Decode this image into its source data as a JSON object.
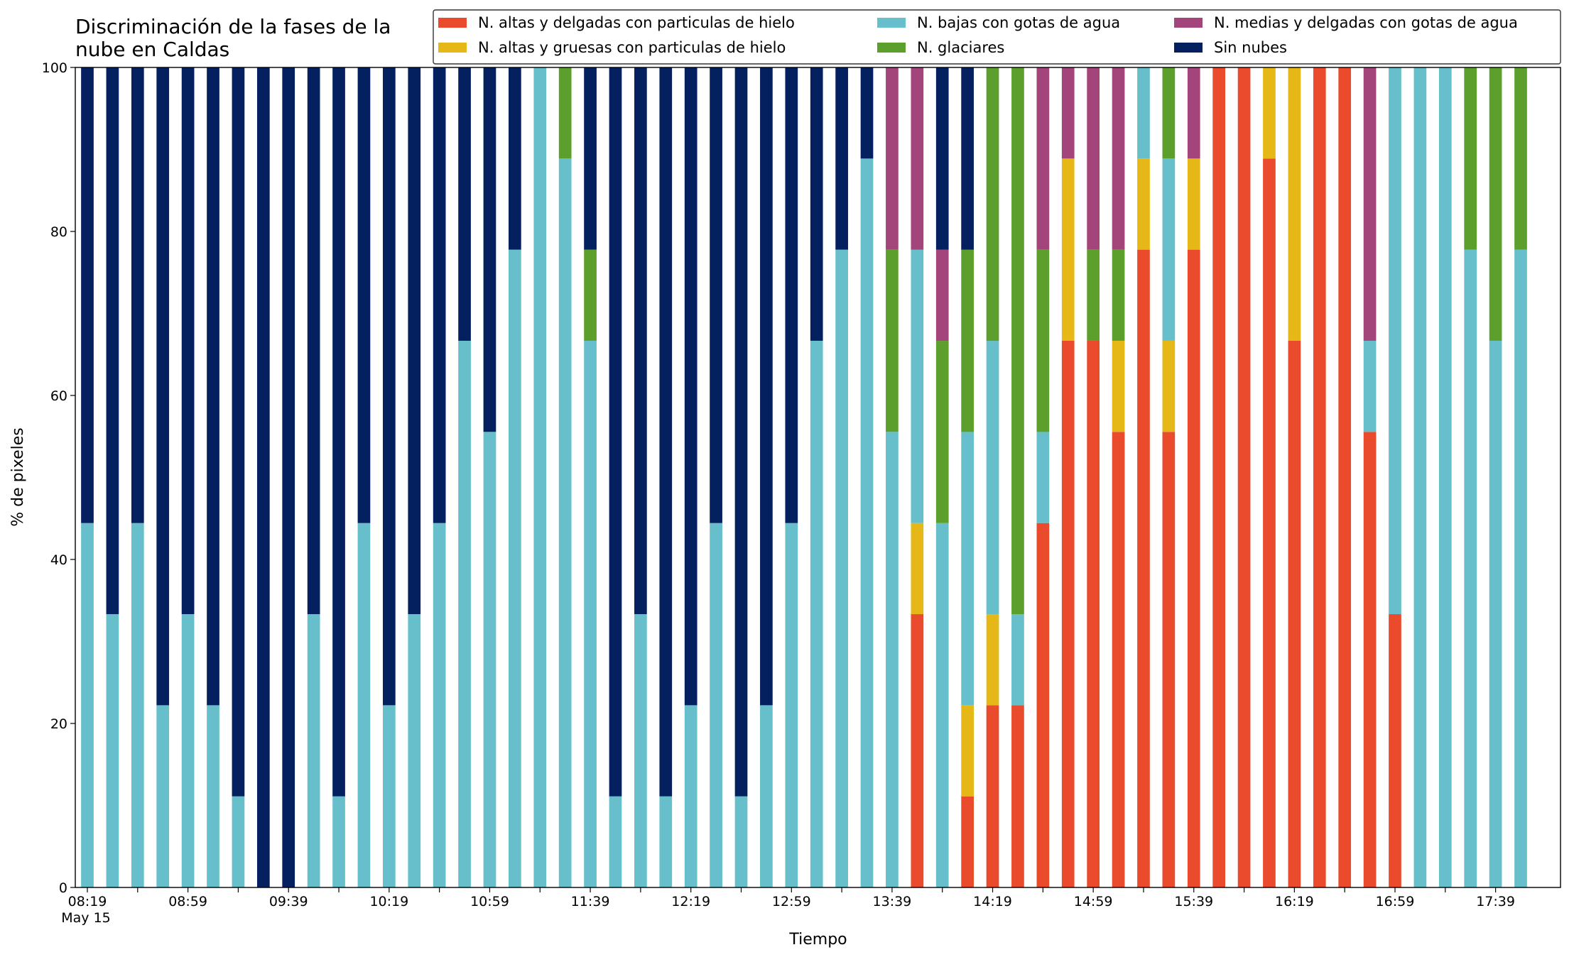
{
  "chart_data": {
    "type": "stacked_bar",
    "title": "Discriminación de la fases de la nube en Caldas",
    "xlabel": "Tiempo",
    "ylabel": "% de pixeles",
    "x_date": "May 15",
    "categories": [
      "08:19",
      null,
      null,
      null,
      "08:59",
      null,
      null,
      null,
      "09:39",
      null,
      null,
      null,
      "10:19",
      null,
      null,
      null,
      "10:59",
      null,
      null,
      null,
      "11:39",
      null,
      null,
      null,
      "12:19",
      null,
      null,
      null,
      "12:59",
      null,
      null,
      null,
      "13:39",
      null,
      null,
      null,
      "14:19",
      null,
      null,
      null,
      "14:59",
      null,
      null,
      null,
      "15:39",
      null,
      null,
      null,
      "16:19",
      null,
      null,
      null,
      "16:59",
      null,
      null,
      null,
      "17:39",
      null
    ],
    "ylim": [
      0,
      100
    ],
    "yticks": [
      0,
      20,
      40,
      60,
      80,
      100
    ],
    "legend_loc": "upper right",
    "legend_columns": 3,
    "series": [
      {
        "name": "N. altas y delgadas con particulas de hielo",
        "color": "#e94b2c",
        "values": [
          0,
          0,
          0,
          0,
          0,
          0,
          0,
          0,
          0,
          0,
          0,
          0,
          0,
          0,
          0,
          0,
          0,
          0,
          0,
          0,
          0,
          0,
          0,
          0,
          0,
          0,
          0,
          0,
          0,
          0,
          0,
          0,
          0,
          33.33,
          0,
          11.11,
          22.22,
          22.22,
          44.44,
          66.67,
          66.67,
          55.56,
          77.78,
          55.56,
          77.78,
          100,
          100,
          88.89,
          66.67,
          100,
          100,
          55.56,
          33.33,
          0,
          0,
          0,
          0,
          0
        ]
      },
      {
        "name": "N. altas y gruesas con particulas de hielo",
        "color": "#e6b817",
        "values": [
          0,
          0,
          0,
          0,
          0,
          0,
          0,
          0,
          0,
          0,
          0,
          0,
          0,
          0,
          0,
          0,
          0,
          0,
          0,
          0,
          0,
          0,
          0,
          0,
          0,
          0,
          0,
          0,
          0,
          0,
          0,
          0,
          0,
          11.11,
          0,
          11.11,
          11.11,
          0,
          0,
          22.22,
          0,
          11.11,
          11.11,
          11.11,
          11.11,
          0,
          0,
          11.11,
          33.33,
          0,
          0,
          0,
          0,
          0,
          0,
          0,
          0,
          0
        ]
      },
      {
        "name": "N. bajas con gotas de agua",
        "color": "#66bfca",
        "values": [
          44.44,
          33.33,
          44.44,
          22.22,
          33.33,
          22.22,
          11.11,
          0,
          0,
          33.33,
          11.11,
          44.44,
          22.22,
          33.33,
          44.44,
          66.67,
          55.56,
          77.78,
          100,
          88.89,
          66.67,
          11.11,
          33.33,
          11.11,
          22.22,
          44.44,
          11.11,
          22.22,
          44.44,
          66.67,
          77.78,
          88.89,
          55.56,
          33.33,
          44.44,
          33.33,
          33.33,
          11.11,
          11.11,
          0,
          0,
          0,
          11.11,
          22.22,
          0,
          0,
          0,
          0,
          0,
          0,
          0,
          11.11,
          66.67,
          100,
          100,
          77.78,
          66.67,
          77.78
        ]
      },
      {
        "name": "N. glaciares",
        "color": "#5c9f2c",
        "values": [
          0,
          0,
          0,
          0,
          0,
          0,
          0,
          0,
          0,
          0,
          0,
          0,
          0,
          0,
          0,
          0,
          0,
          0,
          0,
          11.11,
          11.11,
          0,
          0,
          0,
          0,
          0,
          0,
          0,
          0,
          0,
          0,
          0,
          22.22,
          0,
          22.22,
          22.22,
          33.33,
          66.67,
          22.22,
          0,
          11.11,
          11.11,
          0,
          11.11,
          0,
          0,
          0,
          0,
          0,
          0,
          0,
          0,
          0,
          0,
          0,
          22.22,
          33.33,
          22.22
        ]
      },
      {
        "name": "N. medias y delgadas con gotas de agua",
        "color": "#a3457a",
        "values": [
          0,
          0,
          0,
          0,
          0,
          0,
          0,
          0,
          0,
          0,
          0,
          0,
          0,
          0,
          0,
          0,
          0,
          0,
          0,
          0,
          0,
          0,
          0,
          0,
          0,
          0,
          0,
          0,
          0,
          0,
          0,
          0,
          22.22,
          22.22,
          11.11,
          0,
          0,
          0,
          22.22,
          11.11,
          22.22,
          22.22,
          0,
          0,
          11.11,
          0,
          0,
          0,
          0,
          0,
          0,
          33.33,
          0,
          0,
          0,
          0,
          0,
          0
        ]
      },
      {
        "name": "Sin nubes",
        "color": "#04205e",
        "values": [
          55.56,
          66.67,
          55.56,
          77.78,
          66.67,
          77.78,
          88.89,
          100,
          100,
          66.67,
          88.89,
          55.56,
          77.78,
          66.67,
          55.56,
          33.33,
          44.44,
          22.22,
          0,
          0,
          22.22,
          88.89,
          66.67,
          88.89,
          77.78,
          55.56,
          88.89,
          77.78,
          55.56,
          33.33,
          22.22,
          11.11,
          0,
          0,
          22.22,
          22.22,
          0,
          0,
          0,
          0,
          0,
          0,
          0,
          0,
          0,
          0,
          0,
          0,
          0,
          0,
          0,
          0,
          0,
          0,
          0,
          0,
          0,
          0
        ]
      }
    ]
  }
}
